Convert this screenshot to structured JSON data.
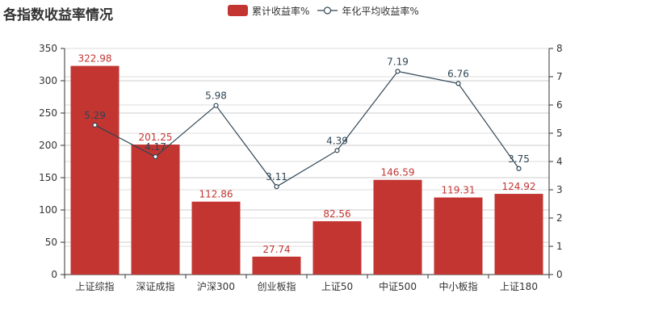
{
  "chart_data": {
    "type": "bar",
    "title": "各指数收益率情况",
    "categories": [
      "上证综指",
      "深证成指",
      "沪深300",
      "创业板指",
      "上证50",
      "中证500",
      "中小板指",
      "上证180"
    ],
    "series": [
      {
        "name": "累计收益率%",
        "type": "bar",
        "axis": "left",
        "color": "#c23531",
        "values": [
          322.98,
          201.25,
          112.86,
          27.74,
          82.56,
          146.59,
          119.31,
          124.92
        ],
        "labels": [
          "322.98",
          "201.25",
          "112.86",
          "27.74",
          "82.56",
          "146.59",
          "119.31",
          "124.92"
        ]
      },
      {
        "name": "年化平均收益率%",
        "type": "line",
        "axis": "right",
        "color": "#2f4554",
        "values": [
          5.29,
          4.17,
          5.98,
          3.11,
          4.39,
          7.19,
          6.76,
          3.75
        ],
        "labels": [
          "5.29",
          "4.17",
          "5.98",
          "3.11",
          "4.39",
          "7.19",
          "6.76",
          "3.75"
        ]
      }
    ],
    "y_left": {
      "min": 0,
      "max": 350,
      "ticks": [
        "0",
        "50",
        "100",
        "150",
        "200",
        "250",
        "300",
        "350"
      ]
    },
    "y_right": {
      "min": 0,
      "max": 8,
      "ticks": [
        "0",
        "1",
        "2",
        "3",
        "4",
        "5",
        "6",
        "7",
        "8"
      ]
    },
    "grid": true,
    "legend_position": "top-center"
  }
}
